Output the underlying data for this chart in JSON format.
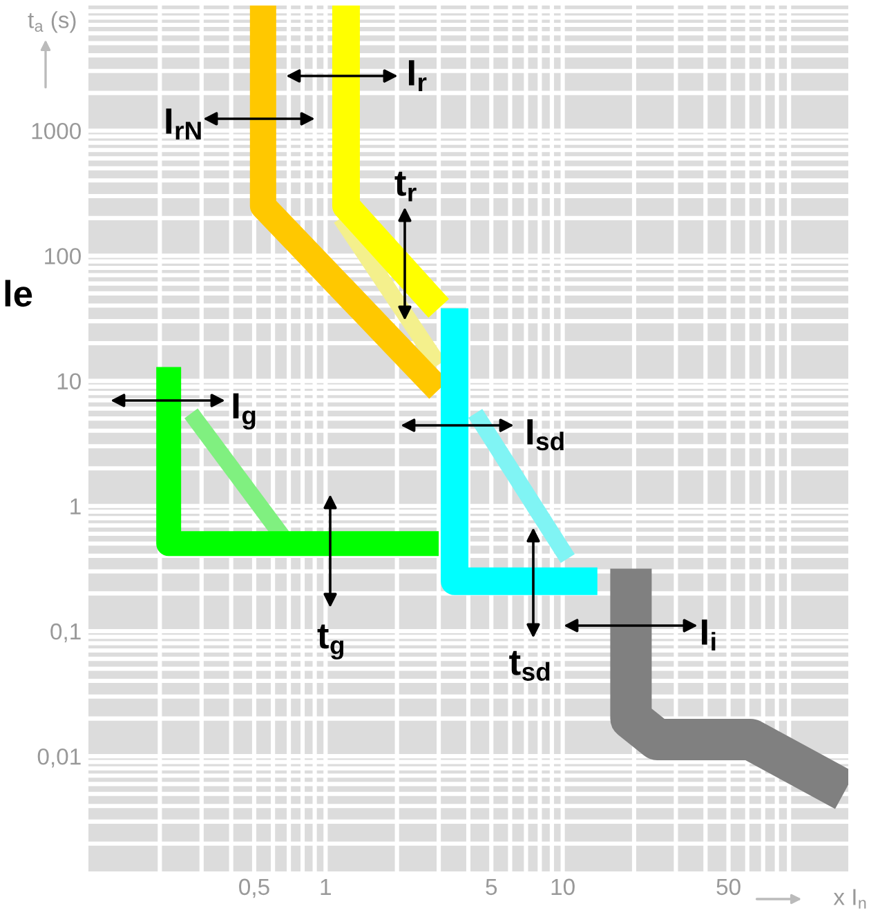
{
  "chart_data": {
    "type": "line",
    "xlabel": "x I$_{n}$",
    "ylabel": "t$_{a}$ (s)",
    "log": "xy",
    "grid": true,
    "marker": "none",
    "line_style": "solid",
    "xlim": [
      0.1,
      160
    ],
    "ylim": [
      0.0012,
      10000
    ],
    "xticks": [
      {
        "value": 0.5,
        "label": "0,5"
      },
      1,
      5,
      10,
      50
    ],
    "yticks": [
      {
        "value": 0.01,
        "label": "0,01"
      },
      {
        "value": 0.1,
        "label": "0,1"
      },
      1,
      10,
      100,
      1000
    ],
    "series": [
      {
        "color": "#f4f08c",
        "x": [
          1.16,
          3
        ],
        "values": [
          200,
          13.5
        ]
      },
      {
        "color": "#80f080",
        "x": [
          0.271,
          0.668
        ],
        "values": [
          5.5,
          0.55
        ]
      },
      {
        "color": "#80f4f4",
        "x": [
          4.28,
          10.5
        ],
        "values": [
          5.5,
          0.38
        ]
      },
      {
        "color": "#ffff00",
        "x": [
          1.22,
          1.22,
          3
        ],
        "values": [
          10000,
          250,
          38
        ]
      },
      {
        "color": "#ffc800",
        "x": [
          0.545,
          0.545,
          3
        ],
        "values": [
          10000,
          250,
          8.5
        ]
      },
      {
        "color": "#00ff00",
        "x": [
          0.218,
          0.218,
          3
        ],
        "values": [
          12.9,
          0.5,
          0.5
        ]
      },
      {
        "color": "#00ffff",
        "x": [
          3.5,
          3.5,
          14
        ],
        "values": [
          38,
          0.25,
          0.25
        ]
      },
      {
        "color": "#808080",
        "x": [
          19.4,
          19.4,
          25,
          62,
          155
        ],
        "values": [
          0.316,
          0.02,
          0.0136,
          0.0136,
          0.0053
        ]
      }
    ],
    "annotations": [
      "I$_{r}$",
      "I$_{rN}$",
      "t$_{r}$",
      "I$_{g}$",
      "I$_{sd}$",
      "t$_{g}$",
      "t$_{sd}$",
      "I$_{i}$",
      "le"
    ]
  }
}
